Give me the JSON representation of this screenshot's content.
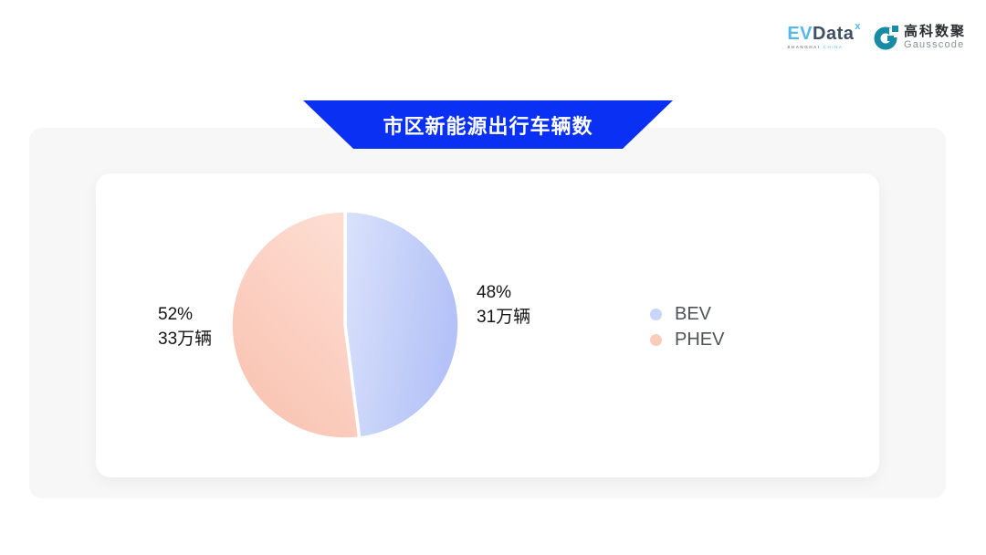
{
  "header": {
    "evdata_logo": {
      "part_ev": "EV",
      "part_data": "Data",
      "superscript": "x",
      "subtext_left": "SHANGHAI",
      "subtext_right": "CHINA"
    },
    "gausscode_logo": {
      "name_cn": "高科数聚",
      "name_en": "Gausscode",
      "icon_color": "#1a8ba4"
    }
  },
  "banner": {
    "title": "市区新能源出行车辆数",
    "color": "#0a30f3",
    "text_color": "#ffffff"
  },
  "chart_data": {
    "type": "pie",
    "title": "市区新能源出行车辆数",
    "start_angle_deg": 0,
    "direction": "clockwise",
    "legend_position": "right",
    "gap_stroke_color": "#ffffff",
    "series": [
      {
        "name": "BEV",
        "percent": 48,
        "percent_label": "48%",
        "value_label": "31万辆",
        "gradient": [
          "#dae2fb",
          "#b4c2f7"
        ]
      },
      {
        "name": "PHEV",
        "percent": 52,
        "percent_label": "52%",
        "value_label": "33万辆",
        "gradient": [
          "#fdddd2",
          "#f9c1af"
        ]
      }
    ],
    "legend": [
      {
        "label": "BEV",
        "color": "#c9d6f9"
      },
      {
        "label": "PHEV",
        "color": "#fbccbc"
      }
    ]
  }
}
